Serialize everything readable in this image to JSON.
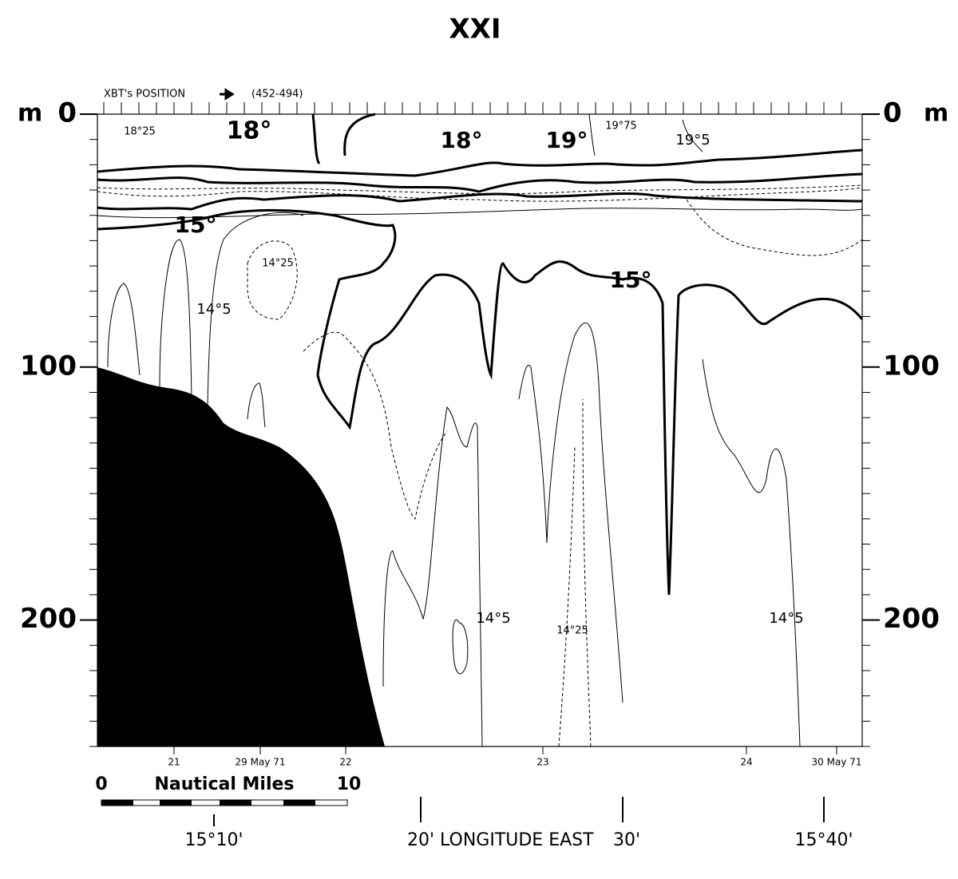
{
  "chart_data": {
    "type": "contour",
    "title": "XXI",
    "position_note": "XBT's POSITION",
    "position_range": "(452-494)",
    "y_unit": "m",
    "ylim": [
      0,
      250
    ],
    "yticks": [
      0,
      100,
      200
    ],
    "contour_labels": [
      "18°25",
      "18°",
      "18°",
      "19°",
      "19°75",
      "19°5",
      "15°",
      "14°25",
      "14°5",
      "15°",
      "14°5",
      "14°25",
      "14°5"
    ],
    "date_labels": [
      "21",
      "29 May 71",
      "22",
      "23",
      "24",
      "30 May 71"
    ],
    "scale": {
      "label": "Nautical Miles",
      "start": 0,
      "end": 10
    },
    "longitude_labels": [
      "15°10'",
      "20' LONGITUDE EAST",
      "30'",
      "15°40'"
    ]
  }
}
